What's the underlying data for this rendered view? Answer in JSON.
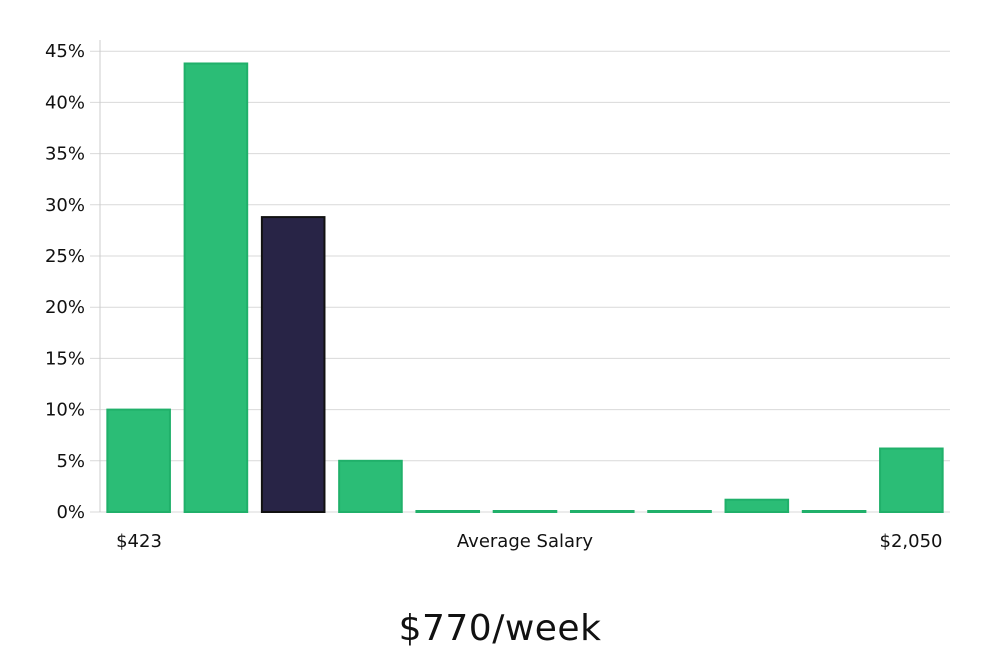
{
  "chart_data": {
    "type": "bar",
    "title": "",
    "xlabel": "Average Salary",
    "ylabel": "",
    "ylim": [
      0,
      46
    ],
    "yticks": [
      0,
      5,
      10,
      15,
      20,
      25,
      30,
      35,
      40,
      45
    ],
    "ytick_labels": [
      "0%",
      "5%",
      "10%",
      "15%",
      "20%",
      "25%",
      "30%",
      "35%",
      "40%",
      "45%"
    ],
    "x_min_label": "$423",
    "x_max_label": "$2,050",
    "values": [
      10.0,
      43.8,
      28.8,
      5.0,
      0,
      0,
      0,
      0,
      1.2,
      0,
      6.2
    ],
    "highlight_index": 2,
    "grid": true,
    "colors": {
      "bar": "#2bbd76",
      "bar_edge": "#20b06a",
      "highlight": "#282446",
      "highlight_edge": "#111111",
      "grid": "#d9d9d9",
      "axis": "#cccccc"
    }
  },
  "summary": "$770/week"
}
